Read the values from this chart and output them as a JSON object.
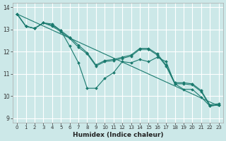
{
  "xlabel": "Humidex (Indice chaleur)",
  "bg_color": "#cce8e8",
  "grid_color": "#ffffff",
  "line_color": "#1a7a6e",
  "xlim": [
    -0.5,
    23.5
  ],
  "ylim": [
    8.8,
    14.2
  ],
  "yticks": [
    9,
    10,
    11,
    12,
    13,
    14
  ],
  "xticks": [
    0,
    1,
    2,
    3,
    4,
    5,
    6,
    7,
    8,
    9,
    10,
    11,
    12,
    13,
    14,
    15,
    16,
    17,
    18,
    19,
    20,
    21,
    22,
    23
  ],
  "series": [
    {
      "x": [
        0,
        1,
        2,
        3,
        4,
        5,
        6,
        7,
        8,
        9,
        10,
        11,
        12,
        13,
        14,
        15,
        16,
        17,
        18,
        19,
        20,
        21,
        22,
        23
      ],
      "y": [
        13.7,
        13.15,
        13.05,
        13.3,
        13.25,
        12.95,
        12.25,
        11.5,
        10.35,
        10.35,
        10.8,
        11.05,
        11.55,
        11.5,
        11.65,
        11.55,
        11.75,
        11.55,
        10.55,
        10.3,
        10.3,
        9.95,
        9.55,
        9.6
      ],
      "marker": true
    },
    {
      "x": [
        0,
        1,
        2,
        3,
        4,
        5,
        6,
        7,
        8,
        9,
        10,
        11,
        12,
        13,
        14,
        15,
        16,
        17,
        18,
        19,
        20,
        21,
        22,
        23
      ],
      "y": [
        13.7,
        13.15,
        13.05,
        13.3,
        13.15,
        12.9,
        12.6,
        12.2,
        11.9,
        11.35,
        11.55,
        11.6,
        11.7,
        11.8,
        12.1,
        12.1,
        11.85,
        11.35,
        10.55,
        10.55,
        10.5,
        10.2,
        9.55,
        9.6
      ],
      "marker": true
    },
    {
      "x": [
        0,
        1,
        2,
        3,
        4,
        5,
        6,
        7,
        8,
        9,
        10,
        11,
        12,
        13,
        14,
        15,
        16,
        17,
        18,
        19,
        20,
        21,
        22,
        23
      ],
      "y": [
        13.7,
        13.15,
        13.05,
        13.3,
        13.2,
        12.95,
        12.65,
        12.3,
        11.95,
        11.4,
        11.6,
        11.65,
        11.75,
        11.85,
        12.15,
        12.15,
        11.9,
        11.4,
        10.6,
        10.6,
        10.55,
        10.25,
        9.6,
        9.65
      ],
      "marker": true
    },
    {
      "x": [
        0,
        23
      ],
      "y": [
        13.7,
        9.55
      ],
      "marker": false
    }
  ]
}
